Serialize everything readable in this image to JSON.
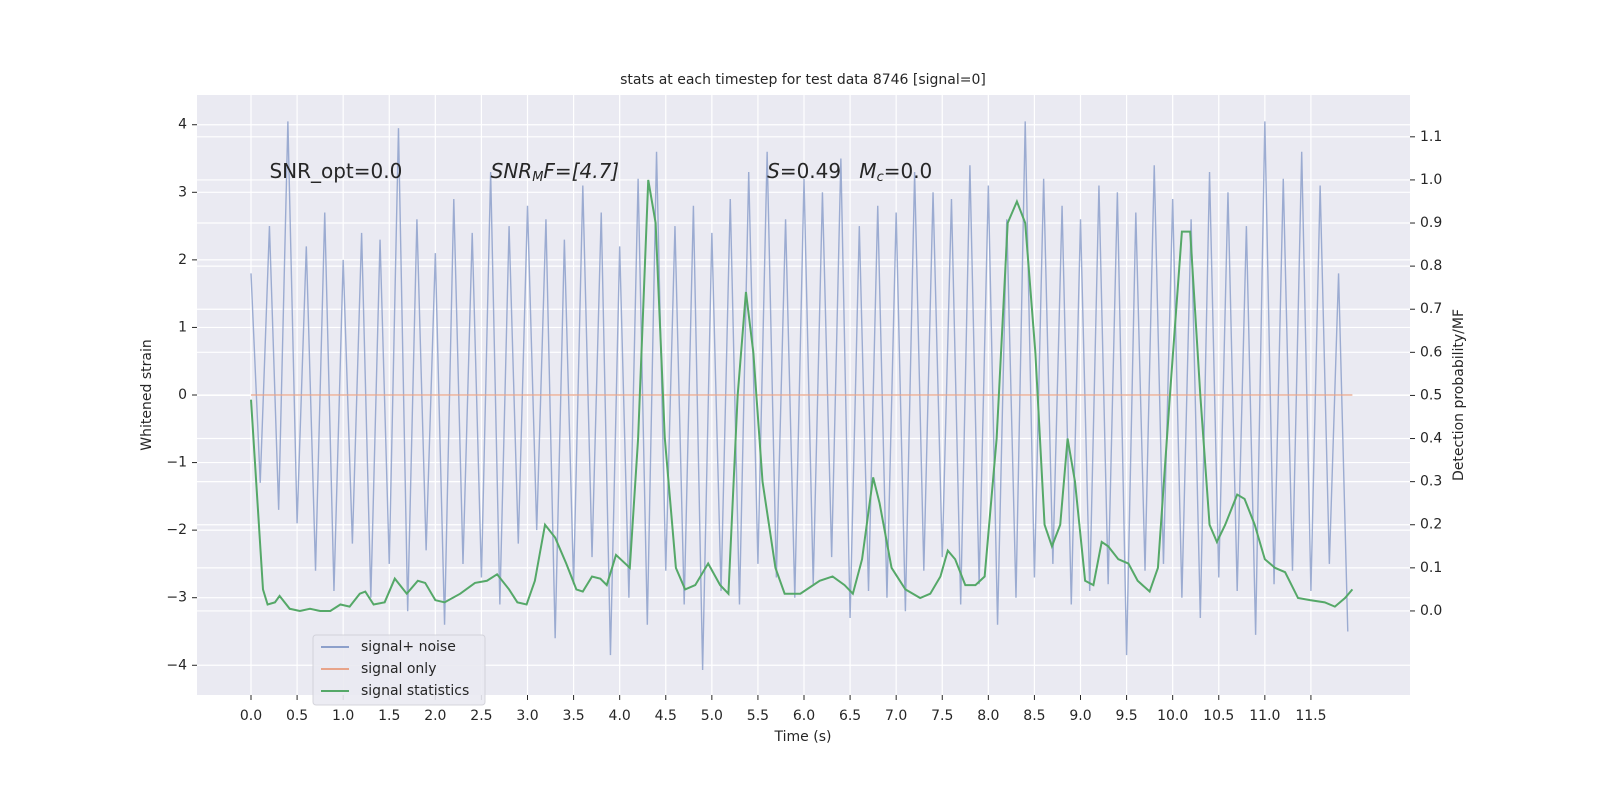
{
  "chart_data": {
    "type": "line",
    "title": "stats at each timestep for test data 8746 [signal=0]",
    "xlabel": "Time (s)",
    "ylabel": "Whitened strain",
    "y2label": "Detection probability/MF",
    "annotations": [
      {
        "base": "SNR_opt=0.0",
        "x": 0.2,
        "y": 3.3
      },
      {
        "base": "SNR",
        "sub": "M",
        "rest": "F=[4.7]",
        "x": 2.6,
        "y": 3.3
      },
      {
        "base": "S",
        "rest": "=0.49",
        "x": 5.6,
        "y": 3.3
      },
      {
        "base": "M",
        "sub": "c",
        "rest": "=0.0",
        "x": 6.6,
        "y": 3.3
      }
    ],
    "xlim": [
      -0.586,
      12.575
    ],
    "ylim": [
      -4.44,
      4.44
    ],
    "y2lim": [
      -0.195,
      1.197
    ],
    "xticks": [
      {
        "value": 0,
        "label": "0.0"
      },
      {
        "value": 0.5,
        "label": "0.5"
      },
      {
        "value": 1,
        "label": "1.0"
      },
      {
        "value": 1.5,
        "label": "1.5"
      },
      {
        "value": 2,
        "label": "2.0"
      },
      {
        "value": 2.5,
        "label": "2.5"
      },
      {
        "value": 3,
        "label": "3.0"
      },
      {
        "value": 3.5,
        "label": "3.5"
      },
      {
        "value": 4,
        "label": "4.0"
      },
      {
        "value": 4.5,
        "label": "4.5"
      },
      {
        "value": 5,
        "label": "5.0"
      },
      {
        "value": 5.5,
        "label": "5.5"
      },
      {
        "value": 6,
        "label": "6.0"
      },
      {
        "value": 6.5,
        "label": "6.5"
      },
      {
        "value": 7,
        "label": "7.0"
      },
      {
        "value": 7.5,
        "label": "7.5"
      },
      {
        "value": 8,
        "label": "8.0"
      },
      {
        "value": 8.5,
        "label": "8.5"
      },
      {
        "value": 9,
        "label": "9.0"
      },
      {
        "value": 9.5,
        "label": "9.5"
      },
      {
        "value": 10,
        "label": "10.0"
      },
      {
        "value": 10.5,
        "label": "10.5"
      },
      {
        "value": 11,
        "label": "11.0"
      },
      {
        "value": 11.5,
        "label": "11.5"
      }
    ],
    "yticks": [
      {
        "value": -4,
        "label": "−4"
      },
      {
        "value": -3,
        "label": "−3"
      },
      {
        "value": -2,
        "label": "−2"
      },
      {
        "value": -1,
        "label": "−1"
      },
      0,
      1,
      2,
      3,
      4
    ],
    "y2ticks": [
      {
        "value": 0,
        "label": "0.0"
      },
      {
        "value": 0.1,
        "label": "0.1"
      },
      {
        "value": 0.2,
        "label": "0.2"
      },
      {
        "value": 0.3,
        "label": "0.3"
      },
      {
        "value": 0.4,
        "label": "0.4"
      },
      {
        "value": 0.5,
        "label": "0.5"
      },
      {
        "value": 0.6,
        "label": "0.6"
      },
      {
        "value": 0.7,
        "label": "0.7"
      },
      {
        "value": 0.8,
        "label": "0.8"
      },
      {
        "value": 0.9,
        "label": "0.9"
      },
      {
        "value": 1,
        "label": "1.0"
      },
      {
        "value": 1.1,
        "label": "1.1"
      }
    ],
    "grid": true,
    "legend": "lower left",
    "series": [
      {
        "name": "signal+ noise",
        "color": "#8da0cb",
        "axis": "y",
        "x": [
          0,
          0.1,
          0.2,
          0.3,
          0.4,
          0.5,
          0.6,
          0.7,
          0.8,
          0.9,
          1,
          1.1,
          1.2,
          1.3,
          1.4,
          1.5,
          1.6,
          1.7,
          1.8,
          1.9,
          2,
          2.1,
          2.2,
          2.3,
          2.4,
          2.5,
          2.6,
          2.7,
          2.8,
          2.9,
          3,
          3.1,
          3.2,
          3.3,
          3.4,
          3.5,
          3.6,
          3.7,
          3.8,
          3.9,
          4,
          4.1,
          4.2,
          4.3,
          4.4,
          4.5,
          4.6,
          4.7,
          4.8,
          4.9,
          5,
          5.1,
          5.2,
          5.3,
          5.4,
          5.5,
          5.6,
          5.7,
          5.8,
          5.9,
          6,
          6.1,
          6.2,
          6.3,
          6.4,
          6.5,
          6.6,
          6.7,
          6.8,
          6.9,
          7,
          7.1,
          7.2,
          7.3,
          7.4,
          7.5,
          7.6,
          7.7,
          7.8,
          7.9,
          8,
          8.1,
          8.2,
          8.3,
          8.4,
          8.5,
          8.6,
          8.7,
          8.8,
          8.9,
          9,
          9.1,
          9.2,
          9.3,
          9.4,
          9.5,
          9.6,
          9.7,
          9.8,
          9.9,
          10,
          10.1,
          10.2,
          10.3,
          10.4,
          10.5,
          10.6,
          10.7,
          10.8,
          10.9,
          11,
          11.1,
          11.2,
          11.3,
          11.4,
          11.5,
          11.6,
          11.7,
          11.8,
          11.9
        ],
        "values": [
          1.8,
          -1.3,
          2.5,
          -1.7,
          4.05,
          -1.9,
          2.2,
          -2.6,
          2.7,
          -2.9,
          2.0,
          -2.2,
          2.4,
          -3.0,
          2.3,
          -2.5,
          3.95,
          -3.2,
          2.6,
          -2.3,
          2.1,
          -3.4,
          2.9,
          -2.5,
          2.4,
          -2.7,
          3.3,
          -3.1,
          2.5,
          -2.2,
          2.8,
          -2.0,
          2.6,
          -3.6,
          2.3,
          -2.8,
          3.1,
          -2.4,
          2.7,
          -3.85,
          2.2,
          -3.0,
          3.2,
          -3.4,
          3.6,
          -2.6,
          2.5,
          -3.1,
          2.8,
          -4.07,
          2.4,
          -2.9,
          2.9,
          -3.1,
          3.3,
          -2.5,
          3.6,
          -2.7,
          2.6,
          -3.0,
          3.2,
          -2.8,
          3.0,
          -2.4,
          3.5,
          -3.3,
          2.5,
          -2.9,
          2.8,
          -3.0,
          2.7,
          -3.2,
          3.3,
          -2.6,
          3.0,
          -2.4,
          2.9,
          -3.1,
          3.4,
          -2.8,
          3.1,
          -3.4,
          2.6,
          -3.0,
          4.05,
          -2.7,
          3.2,
          -2.5,
          2.8,
          -3.1,
          2.6,
          -2.9,
          3.1,
          -2.8,
          3.0,
          -3.85,
          2.7,
          -2.6,
          3.4,
          -2.5,
          2.9,
          -3.0,
          2.6,
          -3.3,
          3.3,
          -2.7,
          3.0,
          -2.9,
          2.5,
          -3.55,
          4.05,
          -2.8,
          3.2,
          -2.6,
          3.6,
          -2.9,
          3.1,
          -2.5,
          1.8,
          -3.5
        ]
      },
      {
        "name": "signal only",
        "color": "#e8a48a",
        "axis": "y",
        "x": [
          0,
          11.95
        ],
        "values": [
          0,
          0
        ]
      },
      {
        "name": "signal statistics",
        "color": "#55a868",
        "axis": "y2",
        "x": [
          0,
          0.13,
          0.18,
          0.26,
          0.31,
          0.42,
          0.53,
          0.64,
          0.75,
          0.86,
          0.97,
          1.07,
          1.18,
          1.24,
          1.33,
          1.45,
          1.56,
          1.69,
          1.81,
          1.89,
          2.0,
          2.1,
          2.27,
          2.43,
          2.56,
          2.67,
          2.8,
          2.89,
          2.99,
          3.08,
          3.19,
          3.3,
          3.42,
          3.53,
          3.6,
          3.7,
          3.79,
          3.86,
          3.96,
          4.11,
          4.2,
          4.31,
          4.39,
          4.49,
          4.61,
          4.71,
          4.82,
          4.96,
          5.09,
          5.18,
          5.28,
          5.37,
          5.45,
          5.55,
          5.69,
          5.79,
          5.96,
          6.17,
          6.31,
          6.44,
          6.53,
          6.63,
          6.75,
          6.82,
          6.95,
          7.1,
          7.26,
          7.37,
          7.48,
          7.56,
          7.64,
          7.75,
          7.86,
          7.96,
          8.09,
          8.21,
          8.31,
          8.4,
          8.51,
          8.61,
          8.69,
          8.78,
          8.86,
          8.94,
          9.05,
          9.14,
          9.23,
          9.3,
          9.41,
          9.52,
          9.62,
          9.75,
          9.84,
          9.97,
          10.1,
          10.19,
          10.3,
          10.4,
          10.48,
          10.57,
          10.7,
          10.78,
          10.89,
          11.0,
          11.11,
          11.22,
          11.36,
          11.49,
          11.65,
          11.76,
          11.87,
          11.95
        ],
        "values": [
          0.49,
          0.05,
          0.015,
          0.02,
          0.035,
          0.005,
          0.0,
          0.005,
          0.0,
          0.0,
          0.015,
          0.01,
          0.04,
          0.045,
          0.015,
          0.02,
          0.075,
          0.04,
          0.07,
          0.065,
          0.025,
          0.02,
          0.04,
          0.065,
          0.07,
          0.085,
          0.05,
          0.02,
          0.015,
          0.07,
          0.2,
          0.17,
          0.11,
          0.05,
          0.045,
          0.08,
          0.075,
          0.06,
          0.13,
          0.1,
          0.4,
          1.0,
          0.9,
          0.4,
          0.1,
          0.05,
          0.06,
          0.11,
          0.06,
          0.04,
          0.5,
          0.74,
          0.6,
          0.3,
          0.1,
          0.04,
          0.04,
          0.07,
          0.08,
          0.06,
          0.04,
          0.12,
          0.31,
          0.25,
          0.1,
          0.05,
          0.03,
          0.04,
          0.08,
          0.14,
          0.12,
          0.06,
          0.06,
          0.08,
          0.4,
          0.9,
          0.95,
          0.9,
          0.6,
          0.2,
          0.15,
          0.2,
          0.4,
          0.3,
          0.07,
          0.06,
          0.16,
          0.15,
          0.12,
          0.11,
          0.07,
          0.045,
          0.1,
          0.5,
          0.88,
          0.88,
          0.5,
          0.2,
          0.16,
          0.2,
          0.27,
          0.26,
          0.2,
          0.12,
          0.1,
          0.09,
          0.03,
          0.025,
          0.02,
          0.01,
          0.03,
          0.05
        ]
      }
    ]
  }
}
